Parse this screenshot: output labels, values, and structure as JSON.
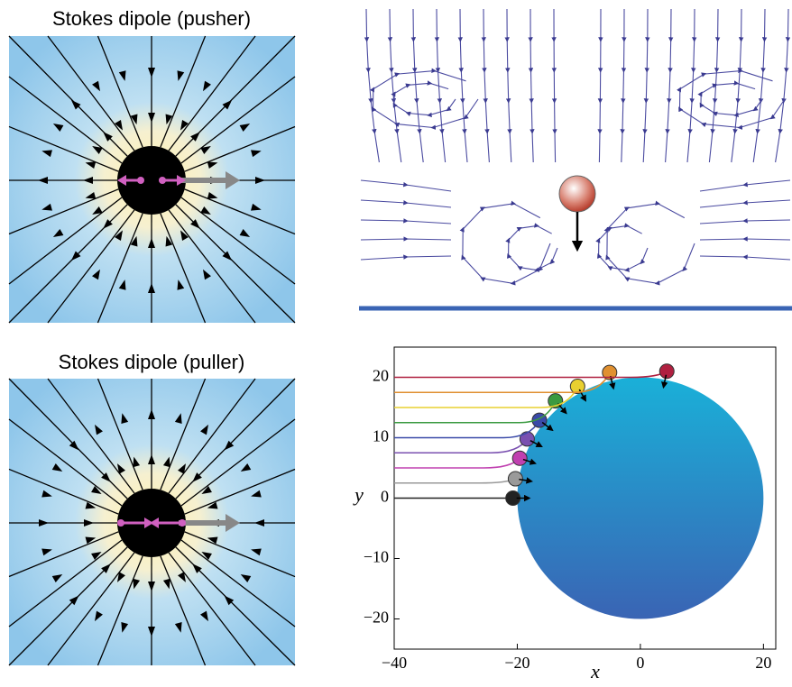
{
  "panels": [
    {
      "title": "Stokes dipole (pusher)"
    },
    {
      "title": "Stokes dipole (puller)"
    }
  ],
  "chart_data": {
    "type": "trajectory",
    "xlabel": "x",
    "ylabel": "y",
    "xlim": [
      -40,
      22
    ],
    "ylim": [
      -25,
      25
    ],
    "xticks": [
      {
        "value": -40,
        "label": "−40"
      },
      {
        "value": -20,
        "label": "−20"
      },
      0,
      20
    ],
    "yticks": [
      {
        "value": -20,
        "label": "−20"
      },
      {
        "value": -10,
        "label": "−10"
      },
      0,
      10,
      20
    ],
    "obstacle": {
      "cx": 0,
      "cy": 0,
      "r": 20
    },
    "series": [
      {
        "color": "#222222",
        "y0": 0,
        "end": [
          -20.7,
          0
        ]
      },
      {
        "color": "#9a9a9a",
        "y0": 2.5,
        "end": [
          -20.3,
          3.2
        ]
      },
      {
        "color": "#c040b0",
        "y0": 5,
        "end": [
          -19.6,
          6.6
        ]
      },
      {
        "color": "#7a50b0",
        "y0": 7.5,
        "end": [
          -18.4,
          9.8
        ]
      },
      {
        "color": "#3a4aa8",
        "y0": 10,
        "end": [
          -16.4,
          12.9
        ]
      },
      {
        "color": "#3a9a40",
        "y0": 12.5,
        "end": [
          -13.8,
          16.1
        ]
      },
      {
        "color": "#e8d030",
        "y0": 15,
        "end": [
          -10.2,
          18.5
        ]
      },
      {
        "color": "#e09030",
        "y0": 17.5,
        "end": [
          -5,
          20.8
        ]
      },
      {
        "color": "#b02040",
        "y0": 20,
        "end": [
          4.3,
          21
        ]
      }
    ]
  }
}
